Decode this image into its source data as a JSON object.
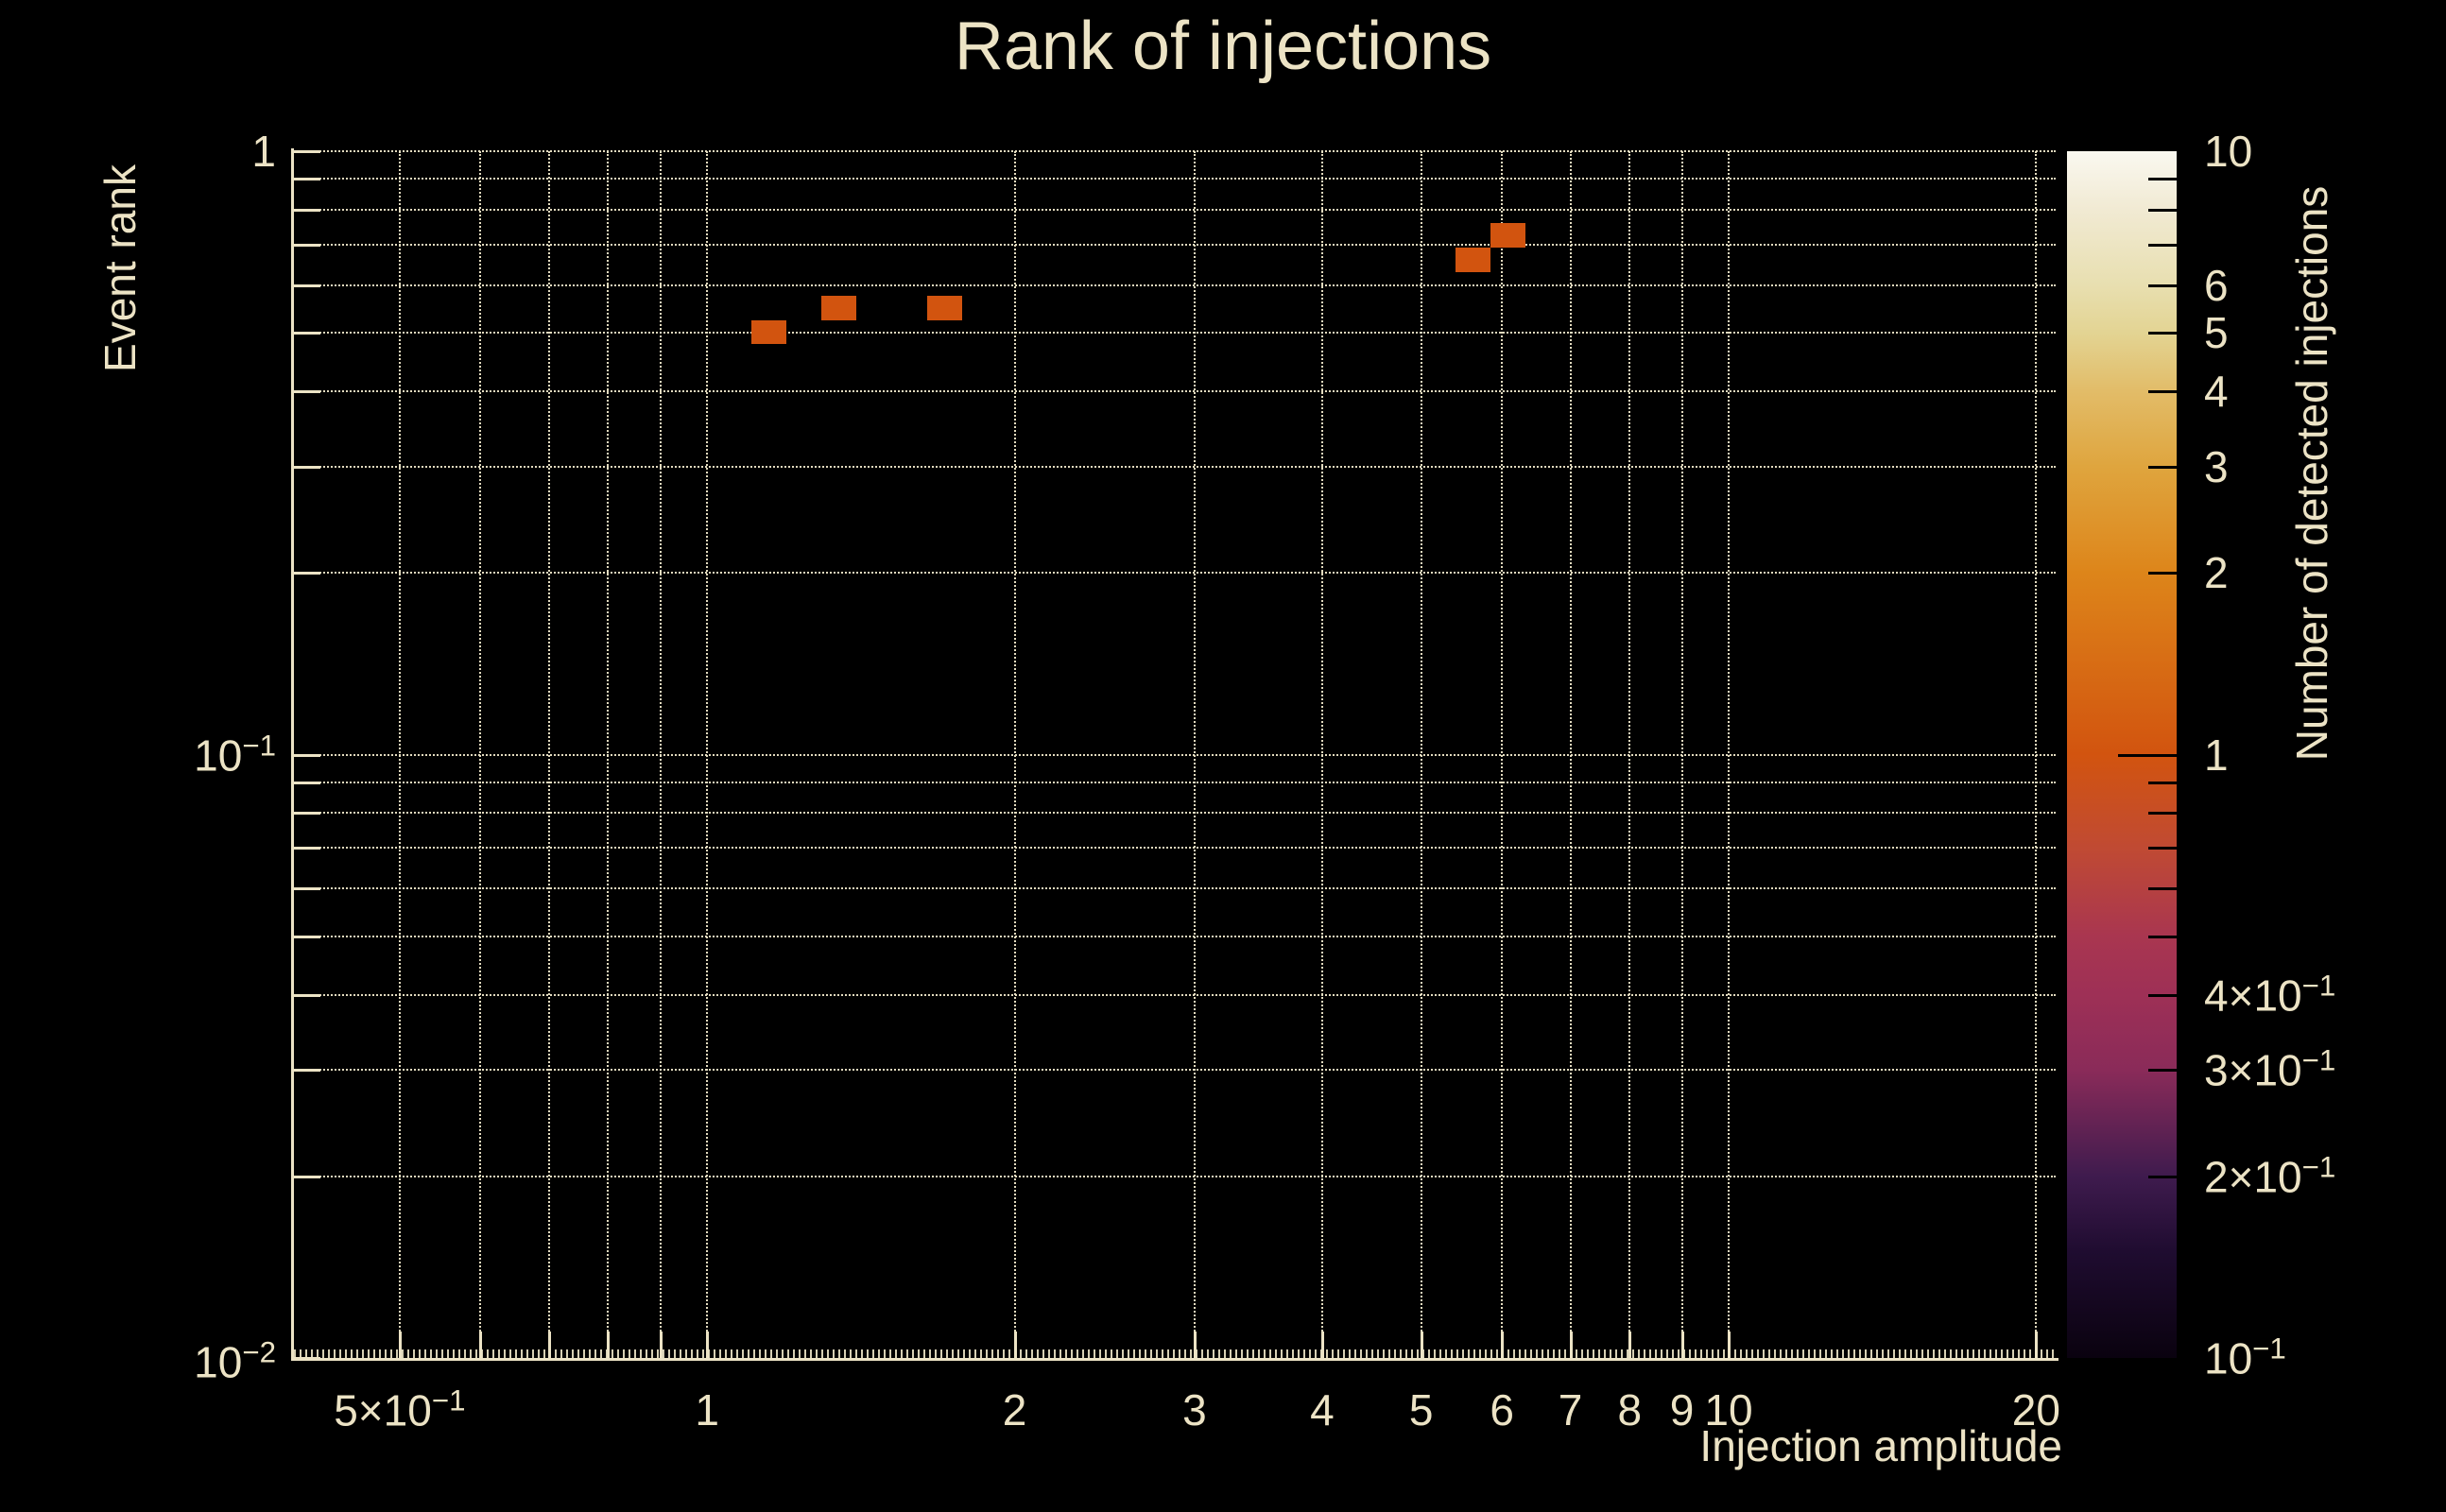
{
  "chart_data": {
    "type": "heatmap",
    "title": "Rank of injections",
    "xlabel": "Injection amplitude",
    "ylabel": "Event rank",
    "colorbar_label": "Number of detected injections",
    "x_scale": "log",
    "y_scale": "log",
    "z_scale": "log",
    "x_range": [
      0.394,
      20.9
    ],
    "y_range": [
      0.01,
      1.0
    ],
    "z_range": [
      0.1,
      10
    ],
    "grid": true,
    "background_color": "#000000",
    "foreground_color": "#ece3c5",
    "bin_color_value_1": "#d2540f",
    "x_major_ticks": [
      {
        "v": 0.5,
        "label": "5×10^{−1}"
      },
      {
        "v": 1,
        "label": "1"
      },
      {
        "v": 2,
        "label": "2"
      },
      {
        "v": 3,
        "label": "3"
      },
      {
        "v": 4,
        "label": "4"
      },
      {
        "v": 5,
        "label": "5"
      },
      {
        "v": 6,
        "label": "6"
      },
      {
        "v": 7,
        "label": "7"
      },
      {
        "v": 8,
        "label": "8"
      },
      {
        "v": 9,
        "label": "9"
      },
      {
        "v": 10,
        "label": "10"
      },
      {
        "v": 20,
        "label": "20"
      }
    ],
    "x_minor_ticks": [
      0.6,
      0.7,
      0.8,
      0.9
    ],
    "y_major_ticks": [
      {
        "v": 1,
        "label": "1"
      },
      {
        "v": 0.1,
        "label": "10^{−1}"
      },
      {
        "v": 0.01,
        "label": "10^{−2}"
      }
    ],
    "y_minor_ticks": [
      0.9,
      0.8,
      0.7,
      0.6,
      0.5,
      0.4,
      0.3,
      0.2,
      0.09,
      0.08,
      0.07,
      0.06,
      0.05,
      0.04,
      0.03,
      0.02
    ],
    "colorbar": {
      "labels": [
        {
          "v": 10,
          "label": "10"
        },
        {
          "v": 6,
          "label": "6"
        },
        {
          "v": 5,
          "label": "5"
        },
        {
          "v": 4,
          "label": "4"
        },
        {
          "v": 3,
          "label": "3"
        },
        {
          "v": 2,
          "label": "2"
        },
        {
          "v": 1,
          "label": "1"
        },
        {
          "v": 0.4,
          "label": "4×10^{−1}"
        },
        {
          "v": 0.3,
          "label": "3×10^{−1}"
        },
        {
          "v": 0.2,
          "label": "2×10^{−1}"
        },
        {
          "v": 0.1,
          "label": "10^{−1}"
        }
      ],
      "minor_ticks": [
        9,
        8,
        7,
        6,
        5,
        4,
        3,
        2,
        0.9,
        0.8,
        0.7,
        0.6,
        0.5,
        0.4,
        0.3,
        0.2
      ],
      "major_ticks": [
        1
      ],
      "stops": [
        {
          "v": 0.1,
          "color": "#0a020f"
        },
        {
          "v": 0.15,
          "color": "#1f0c30"
        },
        {
          "v": 0.2,
          "color": "#3f1b4e"
        },
        {
          "v": 0.3,
          "color": "#8a2b59"
        },
        {
          "v": 0.4,
          "color": "#9e3056"
        },
        {
          "v": 0.5,
          "color": "#a93650"
        },
        {
          "v": 0.7,
          "color": "#c04a33"
        },
        {
          "v": 1.0,
          "color": "#d2540f"
        },
        {
          "v": 2.0,
          "color": "#dd851a"
        },
        {
          "v": 3.0,
          "color": "#dfa53e"
        },
        {
          "v": 4.0,
          "color": "#e2bc68"
        },
        {
          "v": 5.0,
          "color": "#e3d493"
        },
        {
          "v": 6.0,
          "color": "#e8dfb0"
        },
        {
          "v": 8.0,
          "color": "#f1ead3"
        },
        {
          "v": 10.0,
          "color": "#faf8f0"
        }
      ]
    },
    "bins": [
      {
        "x_min": 1.105,
        "x_max": 1.196,
        "y_min": 0.479,
        "y_max": 0.525,
        "count": 1
      },
      {
        "x_min": 1.294,
        "x_max": 1.4,
        "y_min": 0.525,
        "y_max": 0.575,
        "count": 1
      },
      {
        "x_min": 1.642,
        "x_max": 1.777,
        "y_min": 0.525,
        "y_max": 0.575,
        "count": 1
      },
      {
        "x_min": 5.4,
        "x_max": 5.84,
        "y_min": 0.631,
        "y_max": 0.692,
        "count": 1
      },
      {
        "x_min": 5.84,
        "x_max": 6.32,
        "y_min": 0.692,
        "y_max": 0.759,
        "count": 1
      }
    ]
  }
}
